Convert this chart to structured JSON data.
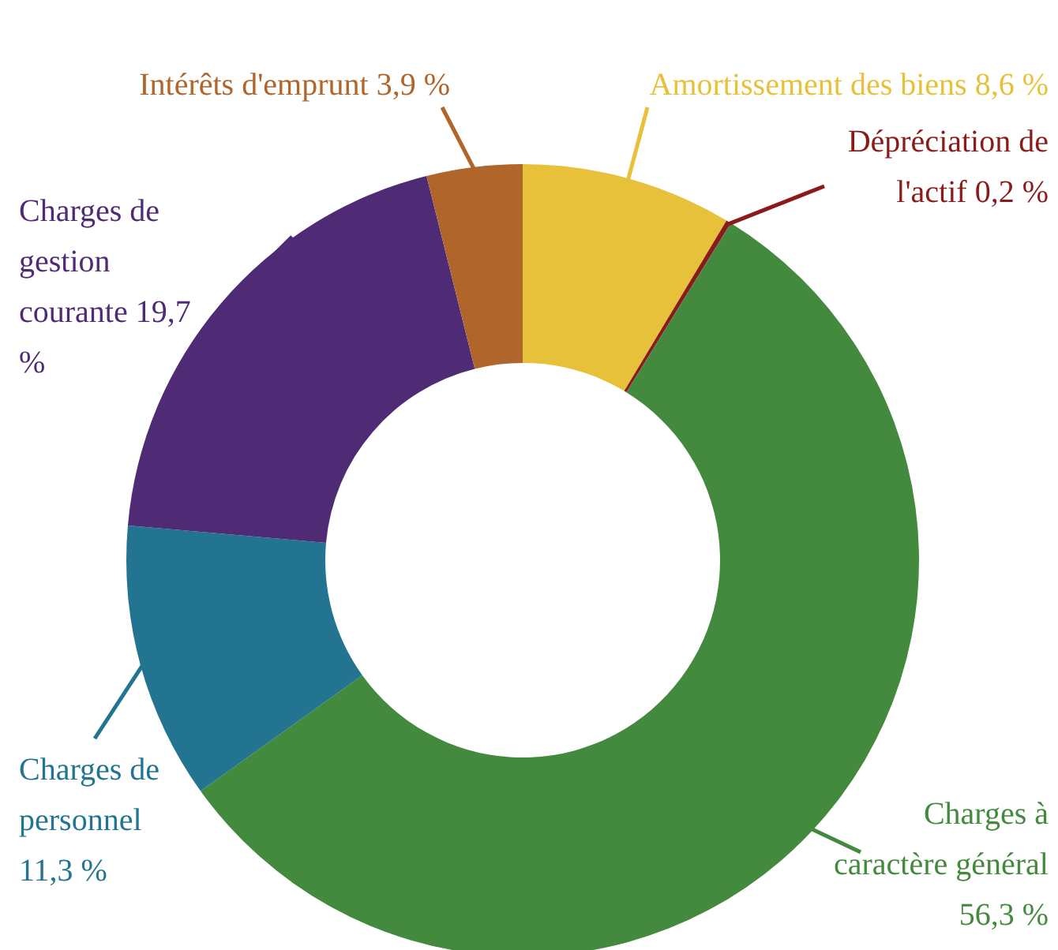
{
  "chart_data": {
    "type": "donut",
    "categories": [
      "Amortissement des biens",
      "Dépréciation de l'actif",
      "Charges à caractère général",
      "Charges de personnel",
      "Charges de gestion courante",
      "Intérêts d'emprunt"
    ],
    "values": [
      8.6,
      0.2,
      56.3,
      11.3,
      19.7,
      3.9
    ],
    "value_labels": [
      "8,6 %",
      "0,2 %",
      "56,3 %",
      "11,3 %",
      "19,7 %",
      "3,9 %"
    ],
    "colors": [
      "#e8c13a",
      "#8b1a1a",
      "#438a3e",
      "#237490",
      "#4f2a75",
      "#b0652a"
    ]
  }
}
